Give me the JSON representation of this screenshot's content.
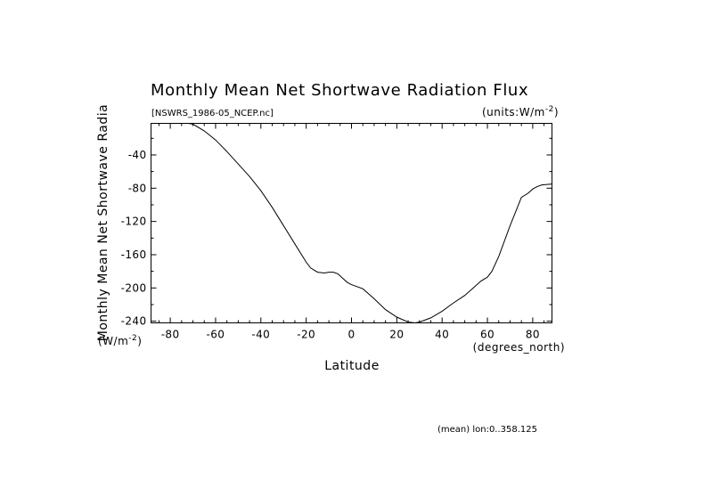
{
  "chart_data": {
    "type": "line",
    "title": "Monthly Mean Net Shortwave Radiation Flux",
    "dataset_label": "[NSWRS_1986-05_NCEP.nc]",
    "units_label": "(units:W/m^-2)",
    "xlabel": "Latitude",
    "xunits": "(degrees_north)",
    "ylabel": "Monthly Mean Net Shortwave Radia",
    "yunits": "(W/m^-2)",
    "footnote": "(mean) lon:0..358.125",
    "xlim": [
      -88.5,
      88.5
    ],
    "ylim": [
      -242,
      -2
    ],
    "xticks": [
      -80,
      -60,
      -40,
      -20,
      0,
      20,
      40,
      60,
      80
    ],
    "xtick_labels": [
      "-80",
      "-60",
      "-40",
      "-20",
      "0",
      "20",
      "40",
      "60",
      "80"
    ],
    "yticks": [
      -40,
      -80,
      -120,
      -160,
      -200,
      -240
    ],
    "ytick_labels": [
      "-40",
      "-80",
      "-120",
      "-160",
      "-200",
      "-240"
    ],
    "grid": false,
    "legend": "none",
    "x": [
      -72,
      -70,
      -65,
      -60,
      -55,
      -50,
      -45,
      -40,
      -35,
      -30,
      -25,
      -20,
      -18,
      -15,
      -12,
      -10,
      -8,
      -6,
      -4,
      -2,
      0,
      5,
      10,
      15,
      20,
      25,
      28,
      30,
      35,
      40,
      45,
      50,
      55,
      57,
      60,
      62,
      65,
      70,
      75,
      78,
      80,
      82,
      84,
      88.5
    ],
    "series": [
      {
        "values": [
          -2,
          -3,
          -11,
          -22,
          -36,
          -51,
          -66,
          -83,
          -103,
          -125,
          -147,
          -169,
          -176,
          -181,
          -182,
          -181,
          -181,
          -183,
          -188,
          -193,
          -196,
          -201,
          -213,
          -226,
          -235,
          -241,
          -242,
          -241,
          -236,
          -228,
          -218,
          -209,
          -197,
          -192,
          -187,
          -180,
          -162,
          -125,
          -91,
          -86,
          -81,
          -78,
          -76,
          -75
        ]
      }
    ]
  }
}
